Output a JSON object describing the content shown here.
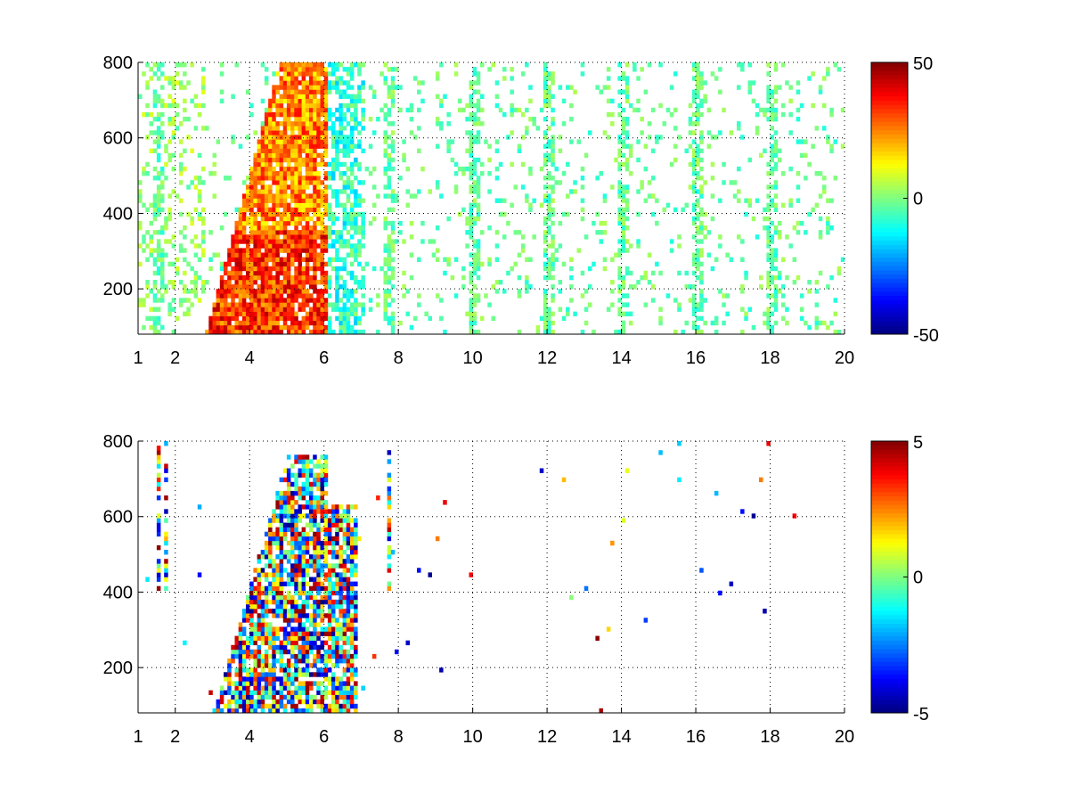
{
  "chart_data": [
    {
      "type": "heatmap",
      "title": "",
      "xlabel": "",
      "ylabel": "",
      "xlim": [
        1,
        20
      ],
      "ylim": [
        80,
        800
      ],
      "x_ticks": [
        1,
        2,
        4,
        6,
        8,
        10,
        12,
        14,
        16,
        18,
        20
      ],
      "y_ticks": [
        200,
        400,
        600,
        800
      ],
      "grid": true,
      "colormap": "jet",
      "color_range": [
        -50,
        50
      ],
      "colorbar_ticks": [
        -50,
        0,
        50
      ],
      "description_features": {
        "dense_region": {
          "x_range": [
            2.8,
            6.0
          ],
          "y_range": [
            80,
            800
          ]
        },
        "vertical_stripes_x": [
          1.5,
          7.7,
          10,
          12,
          14,
          16,
          18
        ]
      }
    },
    {
      "type": "heatmap",
      "title": "",
      "xlabel": "",
      "ylabel": "",
      "xlim": [
        1,
        20
      ],
      "ylim": [
        80,
        800
      ],
      "x_ticks": [
        1,
        2,
        4,
        6,
        8,
        10,
        12,
        14,
        16,
        18,
        20
      ],
      "y_ticks": [
        200,
        400,
        600,
        800
      ],
      "grid": true,
      "colormap": "jet",
      "color_range": [
        -5,
        5
      ],
      "colorbar_ticks": [
        -5,
        0,
        5
      ],
      "description_features": {
        "dense_region": {
          "x_range": [
            3.0,
            6.8
          ],
          "y_range": [
            80,
            760
          ]
        },
        "vertical_stripes_x": [
          1.5,
          1.7,
          7.7
        ]
      }
    }
  ]
}
